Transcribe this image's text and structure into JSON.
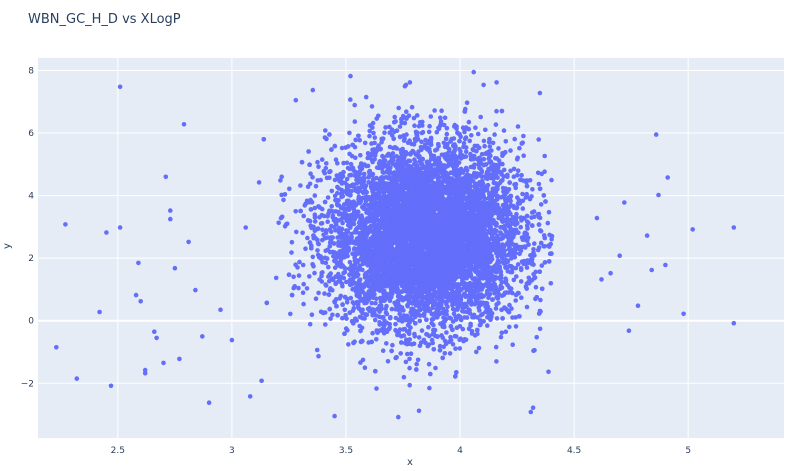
{
  "chart_data": {
    "type": "scatter",
    "title": "WBN_GC_H_D vs XLogP",
    "xlabel": "x",
    "ylabel": "y",
    "xlim": [
      2.15,
      5.42
    ],
    "ylim": [
      -3.75,
      8.4
    ],
    "xticks": [
      2.5,
      3,
      3.5,
      4,
      4.5,
      5
    ],
    "xtick_labels": [
      "2.5",
      "3",
      "3.5",
      "4",
      "4.5",
      "5"
    ],
    "yticks": [
      -2,
      0,
      2,
      4,
      6,
      8
    ],
    "ytick_labels": [
      "−2",
      "0",
      "2",
      "4",
      "6",
      "8"
    ],
    "grid": true,
    "legend": "none",
    "colors": {
      "marker": "#636efa",
      "plot_bg": "#e5ecf6",
      "grid": "#ffffff",
      "text": "#2a3f5f"
    },
    "series": [
      {
        "points": [
          [
            2.23,
            -0.85
          ],
          [
            2.27,
            3.08
          ],
          [
            2.32,
            -1.85
          ],
          [
            2.42,
            0.28
          ],
          [
            2.45,
            2.82
          ],
          [
            2.47,
            -2.08
          ],
          [
            2.51,
            7.48
          ],
          [
            2.51,
            2.98
          ],
          [
            2.58,
            0.82
          ],
          [
            2.59,
            1.85
          ],
          [
            2.6,
            0.62
          ],
          [
            2.62,
            -1.58
          ],
          [
            2.62,
            -1.68
          ],
          [
            2.66,
            -0.35
          ],
          [
            2.67,
            -0.55
          ],
          [
            2.7,
            -1.35
          ],
          [
            2.71,
            4.6
          ],
          [
            2.73,
            3.52
          ],
          [
            2.73,
            3.25
          ],
          [
            2.75,
            1.68
          ],
          [
            2.77,
            -1.22
          ],
          [
            2.79,
            6.28
          ],
          [
            2.81,
            2.52
          ],
          [
            2.84,
            0.98
          ],
          [
            2.87,
            -0.5
          ],
          [
            2.9,
            -2.62
          ],
          [
            2.95,
            0.35
          ],
          [
            3.0,
            -0.62
          ],
          [
            3.08,
            -2.42
          ],
          [
            3.13,
            -1.92
          ],
          [
            3.28,
            7.05
          ],
          [
            3.52,
            7.82
          ],
          [
            3.78,
            7.62
          ],
          [
            4.06,
            7.95
          ],
          [
            4.16,
            7.62
          ],
          [
            4.35,
            7.28
          ],
          [
            3.45,
            -3.05
          ],
          [
            3.82,
            -2.88
          ],
          [
            4.31,
            -2.92
          ],
          [
            4.32,
            -2.78
          ],
          [
            4.6,
            3.28
          ],
          [
            4.62,
            1.32
          ],
          [
            4.66,
            1.52
          ],
          [
            4.7,
            2.08
          ],
          [
            4.72,
            3.78
          ],
          [
            4.74,
            -0.32
          ],
          [
            4.78,
            0.48
          ],
          [
            4.82,
            2.72
          ],
          [
            4.84,
            1.62
          ],
          [
            4.86,
            5.95
          ],
          [
            4.87,
            4.02
          ],
          [
            4.9,
            1.78
          ],
          [
            4.91,
            4.58
          ],
          [
            4.98,
            0.22
          ],
          [
            5.02,
            2.92
          ],
          [
            5.2,
            2.98
          ],
          [
            5.2,
            -0.08
          ]
        ]
      }
    ]
  }
}
